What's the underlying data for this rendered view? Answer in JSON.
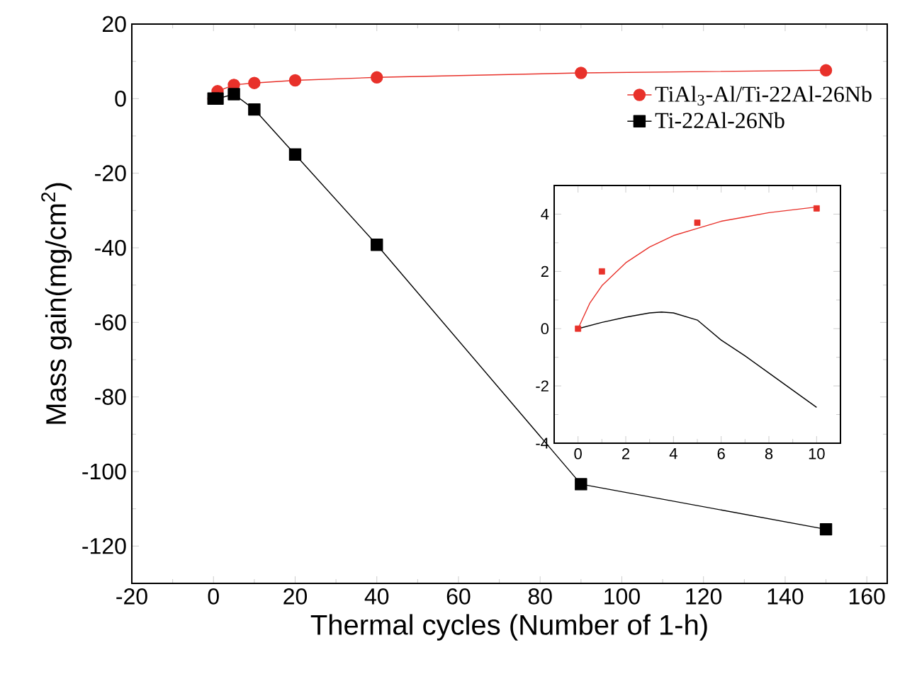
{
  "chart_data": [
    {
      "type": "line",
      "xlabel": "Thermal cycles (Number of 1-h)",
      "ylabel": "Mass gain(mg/cm$^{2}$)",
      "xlim": [
        -20,
        165
      ],
      "ylim": [
        -130,
        20
      ],
      "xticks": [
        -20,
        0,
        20,
        40,
        60,
        80,
        100,
        120,
        140,
        160
      ],
      "yticks": [
        -120,
        -100,
        -80,
        -60,
        -40,
        -20,
        0,
        20
      ],
      "legend": "top right",
      "series": [
        {
          "name": "TiAl$_{3}$-Al/Ti-22Al-26Nb",
          "color": "#e8312a",
          "marker": "circle",
          "x": [
            0,
            1,
            5,
            10,
            20,
            40,
            90,
            150
          ],
          "values": [
            0,
            2,
            3.7,
            4.2,
            4.9,
            5.7,
            6.9,
            7.6
          ]
        },
        {
          "name": "Ti-22Al-26Nb",
          "color": "#000000",
          "marker": "square",
          "x": [
            0,
            1,
            5,
            10,
            20,
            40,
            90,
            150
          ],
          "values": [
            0,
            0,
            1.2,
            -2.9,
            -15,
            -39.2,
            -103.4,
            -115.5
          ]
        }
      ]
    },
    {
      "type": "line",
      "xlim": [
        -1,
        11
      ],
      "ylim": [
        -4,
        5
      ],
      "xticks": [
        0,
        2,
        4,
        6,
        8,
        10
      ],
      "yticks": [
        -4,
        -2,
        0,
        2,
        4
      ],
      "series": [
        {
          "type": "scatter",
          "color": "#e8312a",
          "marker": "square",
          "x": [
            0,
            1,
            5,
            10
          ],
          "values": [
            0,
            2,
            3.7,
            4.2
          ]
        },
        {
          "type": "line",
          "color": "#e8312a",
          "x": [
            0,
            0.5,
            1,
            2,
            3,
            4,
            5,
            6,
            7,
            8,
            9,
            10
          ],
          "values": [
            0,
            0.9,
            1.5,
            2.3,
            2.85,
            3.25,
            3.5,
            3.75,
            3.9,
            4.05,
            4.15,
            4.25
          ]
        },
        {
          "type": "line",
          "color": "#000000",
          "x": [
            0,
            1,
            2,
            3,
            3.5,
            4,
            5,
            6,
            7,
            8,
            9,
            10
          ],
          "values": [
            0,
            0.22,
            0.4,
            0.55,
            0.58,
            0.55,
            0.3,
            -0.4,
            -0.95,
            -1.55,
            -2.15,
            -2.75
          ]
        }
      ]
    }
  ]
}
